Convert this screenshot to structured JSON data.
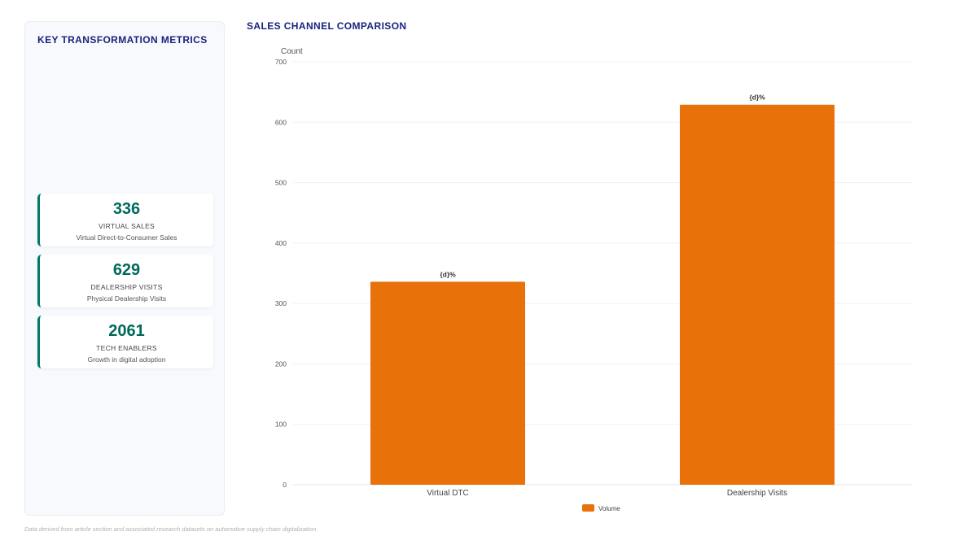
{
  "metrics_panel": {
    "title": "KEY TRANSFORMATION METRICS",
    "cards": [
      {
        "value": "336",
        "label": "VIRTUAL SALES",
        "description": "Virtual Direct-to-Consumer Sales"
      },
      {
        "value": "629",
        "label": "DEALERSHIP VISITS",
        "description": "Physical Dealership Visits"
      },
      {
        "value": "2061",
        "label": "TECH ENABLERS",
        "description": "Growth in digital adoption"
      }
    ]
  },
  "chart_title": "SALES CHANNEL COMPARISON",
  "footnote": "Data derived from article section and associated research datasets on automotive supply chain digitalization.",
  "chart_data": {
    "type": "bar",
    "categories": [
      "Virtual DTC",
      "Dealership Visits"
    ],
    "series": [
      {
        "name": "Volume",
        "values": [
          336,
          629
        ],
        "color": "#e8710a"
      }
    ],
    "data_labels": [
      "{d}%",
      "{d}%"
    ],
    "ylabel": "Count",
    "ylim": [
      0,
      700
    ],
    "yticks": [
      0,
      100,
      200,
      300,
      400,
      500,
      600,
      700
    ],
    "grid": true,
    "legend_position": "bottom"
  }
}
